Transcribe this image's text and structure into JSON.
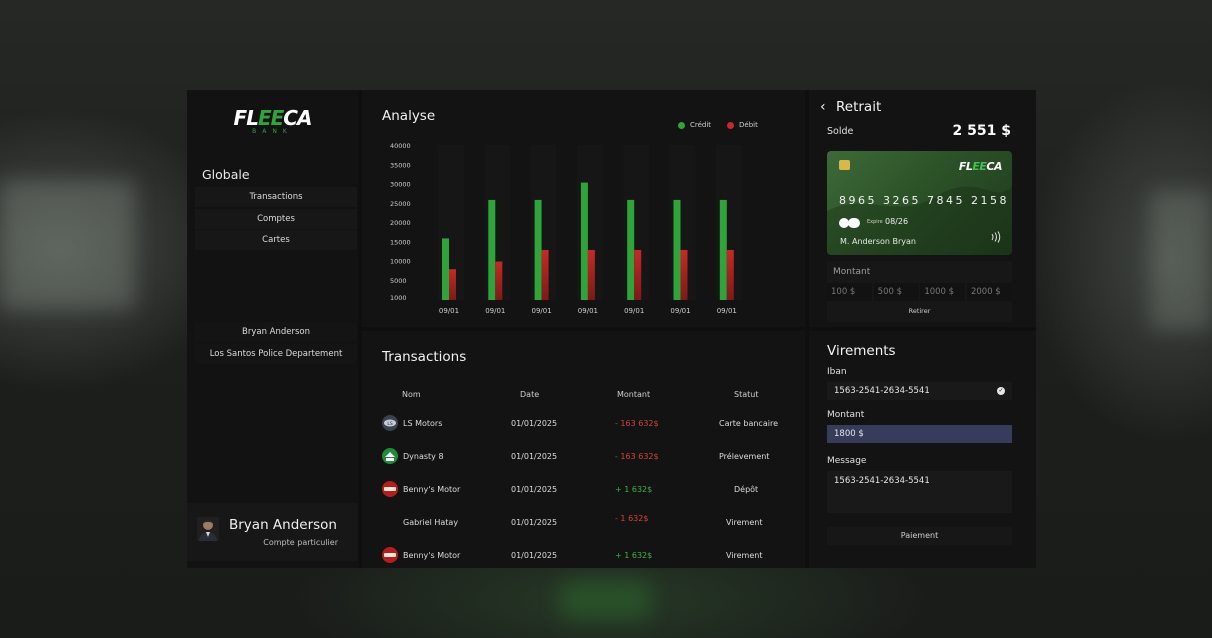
{
  "colors": {
    "credit": "#2fa43a",
    "debit": "#c52a27",
    "accent": "#2fa43a",
    "selected_field": "#373c5a"
  },
  "sidebar": {
    "logo_word": "FLEECA",
    "logo_sub": "BANK",
    "section_title": "Globale",
    "nav": [
      {
        "label": "Transactions"
      },
      {
        "label": "Comptes"
      },
      {
        "label": "Cartes"
      }
    ],
    "accounts": [
      {
        "label": "Bryan Anderson"
      },
      {
        "label": "Los Santos Police Departement"
      }
    ],
    "profile": {
      "name": "Bryan Anderson",
      "type": "Compte particulier",
      "avatar_icon": "person-avatar-icon"
    }
  },
  "analyse": {
    "title": "Analyse",
    "legend": {
      "credit": "Crédit",
      "debit": "Débit"
    }
  },
  "chart_data": {
    "type": "bar",
    "title": "Analyse",
    "categories": [
      "09/01",
      "09/01",
      "09/01",
      "09/01",
      "09/01",
      "09/01",
      "09/01"
    ],
    "series": [
      {
        "name": "Crédit",
        "values": [
          16000,
          26000,
          26000,
          30500,
          26000,
          26000,
          26000
        ]
      },
      {
        "name": "Débit",
        "values": [
          8000,
          10000,
          13000,
          13000,
          13000,
          13000,
          13000
        ]
      }
    ],
    "yticks": [
      40000,
      35000,
      30000,
      25000,
      20000,
      15000,
      10000,
      5000,
      1000
    ],
    "ylim": [
      0,
      40000
    ],
    "legend_position": "top-right",
    "grid": false
  },
  "transactions": {
    "title": "Transactions",
    "headers": {
      "name": "Nom",
      "date": "Date",
      "amount": "Montant",
      "status": "Statut"
    },
    "rows": [
      {
        "name": "LS Motors",
        "date": "01/01/2025",
        "amount": "- 163 632$",
        "sign": "neg",
        "status": "Carte bancaire",
        "icon": "ls-motors-logo-icon"
      },
      {
        "name": "Dynasty 8",
        "date": "01/01/2025",
        "amount": "- 163 632$",
        "sign": "neg",
        "status": "Prélevement",
        "icon": "dynasty8-logo-icon"
      },
      {
        "name": "Benny's Motor",
        "date": "01/01/2025",
        "amount": "+ 1 632$",
        "sign": "pos",
        "status": "Dépôt",
        "icon": "bennys-logo-icon"
      },
      {
        "name": "Gabriel Hatay",
        "date": "01/01/2025",
        "amount": "- 1 632$",
        "sign": "neg",
        "status": "Virement",
        "icon": ""
      },
      {
        "name": "Benny's Motor",
        "date": "01/01/2025",
        "amount": "+ 1 632$",
        "sign": "pos",
        "status": "Virement",
        "icon": "bennys-logo-icon"
      }
    ]
  },
  "retrait": {
    "back": "‹",
    "title": "Retrait",
    "solde_label": "Solde",
    "solde_value": "2 551 $",
    "card": {
      "logo": "FLEECA",
      "number": "8965 3265 7845 2158",
      "expiry_label": "Expire",
      "expiry": "08/26",
      "holder": "M. Anderson Bryan",
      "brand_icon": "cb-logo-icon",
      "contactless_icon": "contactless-icon"
    },
    "amount_label": "Montant",
    "presets": [
      "100 $",
      "500 $",
      "1000 $",
      "2000 $"
    ],
    "withdraw_label": "Retirer"
  },
  "virements": {
    "title": "Virements",
    "iban_label": "Iban",
    "iban_value": "1563-2541-2634-5541",
    "amount_label": "Montant",
    "amount_value": "1800 $",
    "message_label": "Message",
    "message_value": "1563-2541-2634-5541",
    "pay_label": "Paiement"
  }
}
